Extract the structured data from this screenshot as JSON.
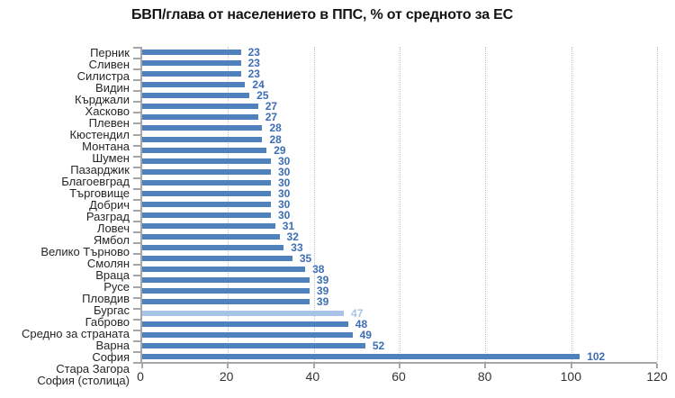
{
  "chart_data": {
    "type": "bar",
    "orientation": "horizontal",
    "title": "БВП/глава от населението в ППС, % от средното за ЕС",
    "categories": [
      "Перник",
      "Сливен",
      "Силистра",
      "Видин",
      "Кърджали",
      "Хасково",
      "Плевен",
      "Кюстендил",
      "Монтана",
      "Шумен",
      "Пазарджик",
      "Благоевград",
      "Търговище",
      "Добрич",
      "Разград",
      "Ловеч",
      "Ямбол",
      "Велико Търново",
      "Смолян",
      "Враца",
      "Русе",
      "Пловдив",
      "Бургас",
      "Габрово",
      "Средно за страната",
      "Варна",
      "София",
      "Стара Загора",
      "София (столица)"
    ],
    "values": [
      23,
      23,
      23,
      24,
      25,
      27,
      27,
      28,
      28,
      29,
      30,
      30,
      30,
      30,
      30,
      30,
      31,
      32,
      33,
      35,
      38,
      39,
      39,
      39,
      47,
      48,
      49,
      52,
      102
    ],
    "highlight_category": "Средно за страната",
    "highlight_index": 24,
    "value_labels_shown": true,
    "xlabel": "",
    "ylabel": "",
    "xlim": [
      0,
      120
    ],
    "xticks": [
      0,
      20,
      40,
      60,
      80,
      100,
      120
    ],
    "grid": "vertical-dotted",
    "legend": "none",
    "colors": {
      "bar": "#4F81BD",
      "highlight_bar": "#A7C3E6",
      "value_label": "#3D6EB5",
      "highlight_value_label": "#A7C3E6",
      "axis": "#A6A6A6",
      "gridline": "#C4C4C4",
      "category_text": "#262626",
      "tick_text": "#333333",
      "title_text": "#141414"
    }
  }
}
